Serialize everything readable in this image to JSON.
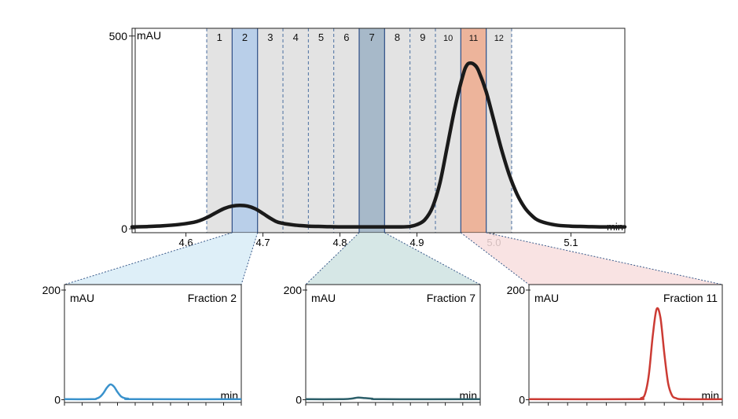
{
  "chart_data": [
    {
      "type": "line",
      "name": "main-chromatogram",
      "ylabel": "mAU",
      "xlabel": "min",
      "xlim": [
        4.53,
        5.17
      ],
      "ylim": [
        -10,
        520
      ],
      "x_ticks": [
        4.6,
        4.7,
        4.8,
        4.9,
        5.0,
        5.1
      ],
      "x_tick_labels": [
        "4.6",
        "4.7",
        "4.8",
        "4.9",
        "5.0",
        "5.1"
      ],
      "y_tick_labels": [
        "0",
        "500"
      ],
      "y_ticks": [
        0,
        500
      ],
      "series": [
        {
          "color": "#1a1a1a",
          "x": [
            4.53,
            4.55,
            4.57,
            4.59,
            4.61,
            4.62,
            4.63,
            4.64,
            4.65,
            4.66,
            4.67,
            4.68,
            4.69,
            4.7,
            4.71,
            4.72,
            4.74,
            4.76,
            4.78,
            4.8,
            4.82,
            4.84,
            4.86,
            4.88,
            4.89,
            4.9,
            4.91,
            4.92,
            4.93,
            4.94,
            4.95,
            4.96,
            4.965,
            4.97,
            4.975,
            4.98,
            4.99,
            5.0,
            5.01,
            5.02,
            5.03,
            5.04,
            5.05,
            5.06,
            5.08,
            5.1,
            5.12,
            5.14,
            5.17
          ],
          "values": [
            5,
            6,
            8,
            11,
            17,
            23,
            32,
            43,
            53,
            59,
            61,
            59,
            52,
            40,
            27,
            17,
            10,
            7,
            6,
            5,
            5,
            5,
            5,
            5,
            6,
            11,
            23,
            55,
            120,
            220,
            320,
            400,
            425,
            430,
            425,
            410,
            355,
            280,
            205,
            140,
            90,
            55,
            33,
            20,
            10,
            7,
            6,
            5,
            5
          ]
        }
      ],
      "fractions": [
        {
          "label": "1",
          "start": 4.627,
          "end": 4.66,
          "highlight": null
        },
        {
          "label": "2",
          "start": 4.66,
          "end": 4.693,
          "highlight": "#b9cfe9"
        },
        {
          "label": "3",
          "start": 4.693,
          "end": 4.726,
          "highlight": null
        },
        {
          "label": "4",
          "start": 4.726,
          "end": 4.759,
          "highlight": null
        },
        {
          "label": "5",
          "start": 4.759,
          "end": 4.792,
          "highlight": null
        },
        {
          "label": "6",
          "start": 4.792,
          "end": 4.825,
          "highlight": null
        },
        {
          "label": "7",
          "start": 4.825,
          "end": 4.858,
          "highlight": "#a7b9c9"
        },
        {
          "label": "8",
          "start": 4.858,
          "end": 4.891,
          "highlight": null
        },
        {
          "label": "9",
          "start": 4.891,
          "end": 4.924,
          "highlight": null
        },
        {
          "label": "10",
          "start": 4.924,
          "end": 4.957,
          "highlight": null
        },
        {
          "label": "11",
          "start": 4.957,
          "end": 4.99,
          "highlight": "#edb49b"
        },
        {
          "label": "12",
          "start": 4.99,
          "end": 5.023,
          "highlight": null
        }
      ]
    },
    {
      "type": "line",
      "name": "fraction-2",
      "title": "Fraction 2",
      "ylabel": "mAU",
      "xlabel": "min",
      "xlim": [
        0,
        10
      ],
      "ylim": [
        -5,
        210
      ],
      "y_ticks": [
        0,
        200
      ],
      "y_tick_labels": [
        "0",
        "200"
      ],
      "series": [
        {
          "color": "#3a92cc",
          "x": [
            0,
            1.6,
            1.8,
            2.0,
            2.2,
            2.4,
            2.6,
            2.8,
            3.0,
            3.2,
            3.4,
            3.6,
            4.0,
            10
          ],
          "values": [
            1,
            1,
            2,
            5,
            12,
            22,
            28,
            24,
            14,
            6,
            3,
            2,
            1,
            1
          ]
        }
      ]
    },
    {
      "type": "line",
      "name": "fraction-7",
      "title": "Fraction 7",
      "ylabel": "mAU",
      "xlabel": "min",
      "xlim": [
        0,
        10
      ],
      "ylim": [
        -5,
        210
      ],
      "y_ticks": [
        0,
        200
      ],
      "y_tick_labels": [
        "0",
        "200"
      ],
      "series": [
        {
          "color": "#2c5f6a",
          "x": [
            0,
            2.0,
            2.6,
            3.0,
            3.4,
            3.8,
            4.4,
            10
          ],
          "values": [
            1,
            1,
            2,
            4,
            3,
            2,
            1,
            1
          ]
        }
      ]
    },
    {
      "type": "line",
      "name": "fraction-11",
      "title": "Fraction 11",
      "ylabel": "mAU",
      "xlabel": "min",
      "xlim": [
        0,
        10
      ],
      "ylim": [
        -5,
        210
      ],
      "y_ticks": [
        0,
        200
      ],
      "y_tick_labels": [
        "0",
        "200"
      ],
      "series": [
        {
          "color": "#cc3b34",
          "x": [
            0,
            5.4,
            5.8,
            6.0,
            6.2,
            6.4,
            6.6,
            6.8,
            7.0,
            7.2,
            7.4,
            7.6,
            8.0,
            10
          ],
          "values": [
            1,
            1,
            3,
            10,
            45,
            115,
            165,
            150,
            85,
            30,
            8,
            3,
            1,
            1
          ]
        }
      ]
    }
  ],
  "zoom_colors": [
    "#d8ecf7",
    "#cfe3e2",
    "#f8dede"
  ]
}
